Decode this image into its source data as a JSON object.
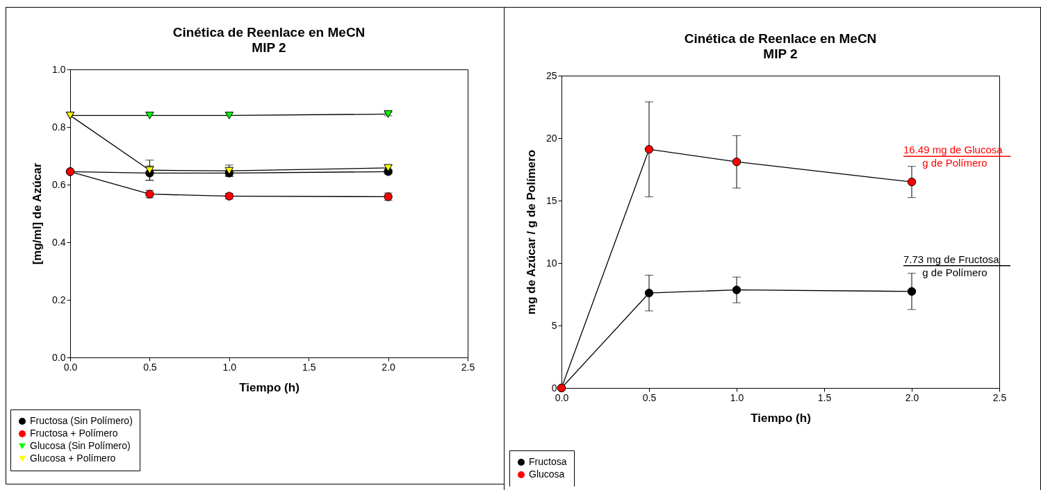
{
  "chart_data": [
    {
      "type": "line",
      "title": "Cinética de Reenlace en MeCN\nMIP 2",
      "xlabel": "Tiempo (h)",
      "ylabel": "[mg/ml] de Azúcar",
      "x": [
        0,
        0.5,
        1,
        2
      ],
      "xlim": [
        0,
        2.5
      ],
      "xticks": [
        {
          "value": 0,
          "label": "0.0"
        },
        {
          "value": 0.5,
          "label": "0.5"
        },
        {
          "value": 1,
          "label": "1.0"
        },
        {
          "value": 1.5,
          "label": "1.5"
        },
        {
          "value": 2,
          "label": "2.0"
        },
        {
          "value": 2.5,
          "label": "2.5"
        }
      ],
      "ylim": [
        0,
        1
      ],
      "yticks": [
        {
          "value": 0,
          "label": "0.0"
        },
        {
          "value": 0.2,
          "label": "0.2"
        },
        {
          "value": 0.4,
          "label": "0.4"
        },
        {
          "value": 0.6,
          "label": "0.6"
        },
        {
          "value": 0.8,
          "label": "0.8"
        },
        {
          "value": 1,
          "label": "1.0"
        }
      ],
      "grid": false,
      "legend": "bottom left",
      "series": [
        {
          "name": "Fructosa (Sin Polímero)",
          "color": "#000000",
          "marker": "circle",
          "values": [
            0.645,
            0.64,
            0.64,
            0.645
          ],
          "errors": [
            null,
            0.025,
            0.01,
            0.008
          ]
        },
        {
          "name": "Fructosa + Polímero",
          "color": "#ff0000",
          "marker": "circle",
          "values": [
            0.645,
            0.567,
            0.56,
            0.558
          ],
          "errors": [
            null,
            0.013,
            0.01,
            0.013
          ]
        },
        {
          "name": "Glucosa (Sin Polímero)",
          "color": "#00ff00",
          "marker": "triangle",
          "values": [
            0.84,
            0.84,
            0.84,
            0.845
          ],
          "errors": [
            null,
            null,
            null,
            0.006
          ]
        },
        {
          "name": "Glucosa + Polímero",
          "color": "#ffff00",
          "marker": "triangle",
          "values": [
            0.84,
            0.65,
            0.648,
            0.658
          ],
          "errors": [
            null,
            0.035,
            0.02,
            0.01
          ]
        }
      ]
    },
    {
      "type": "line",
      "title": "Cinética de Reenlace en MeCN\nMIP 2",
      "xlabel": "Tiempo (h)",
      "ylabel": "mg de Azúcar / g de Polímero",
      "x": [
        0,
        0.5,
        1,
        2
      ],
      "xlim": [
        0,
        2.5
      ],
      "xticks": [
        {
          "value": 0,
          "label": "0.0"
        },
        {
          "value": 0.5,
          "label": "0.5"
        },
        {
          "value": 1,
          "label": "1.0"
        },
        {
          "value": 1.5,
          "label": "1.5"
        },
        {
          "value": 2,
          "label": "2.0"
        },
        {
          "value": 2.5,
          "label": "2.5"
        }
      ],
      "ylim": [
        0,
        25
      ],
      "yticks": [
        0,
        5,
        10,
        15,
        20,
        25
      ],
      "grid": false,
      "legend": "bottom left",
      "series": [
        {
          "name": "Fructosa",
          "color": "#000000",
          "marker": "circle",
          "values": [
            0,
            7.6,
            7.85,
            7.73
          ],
          "errors": [
            null,
            1.43,
            1.03,
            1.45
          ]
        },
        {
          "name": "Glucosa",
          "color": "#ff0000",
          "marker": "circle",
          "values": [
            0,
            19.1,
            18.1,
            16.49
          ],
          "errors": [
            null,
            3.8,
            2.1,
            1.25
          ]
        }
      ],
      "annotations": [
        {
          "text": "16.49 mg de Glucosa\ng de Polímero",
          "x": 2,
          "y": 16.49
        },
        {
          "text": "7.73 mg de Fructosa\ng de Polímero",
          "x": 2,
          "y": 7.73
        }
      ]
    }
  ]
}
